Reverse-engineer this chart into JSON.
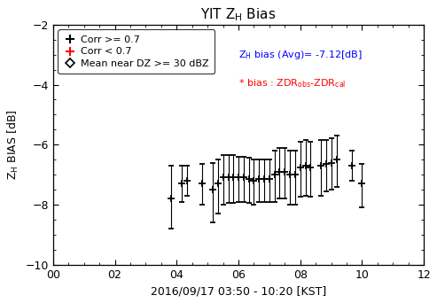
{
  "title": "YIT Z$_\\mathrm{H}$ Bias",
  "xlabel": "2016/09/17 03:50 - 10:20 [KST]",
  "ylabel": "Z$_\\mathrm{H}$ BIAS [dB]",
  "xlim": [
    0,
    12
  ],
  "ylim": [
    -10,
    -2
  ],
  "xticks": [
    0,
    2,
    4,
    6,
    8,
    10,
    12
  ],
  "xticklabels": [
    "00",
    "02",
    "04",
    "06",
    "08",
    "10",
    "12"
  ],
  "yticks": [
    -10,
    -8,
    -6,
    -4,
    -2
  ],
  "x_data": [
    3.83,
    4.17,
    4.33,
    4.83,
    5.17,
    5.33,
    5.5,
    5.67,
    5.83,
    6.0,
    6.17,
    6.33,
    6.5,
    6.67,
    6.83,
    7.0,
    7.17,
    7.33,
    7.5,
    7.67,
    7.83,
    8.0,
    8.17,
    8.33,
    8.67,
    8.83,
    9.0,
    9.17,
    9.67,
    10.0
  ],
  "y_data": [
    -7.8,
    -7.3,
    -7.2,
    -7.3,
    -7.5,
    -7.3,
    -7.1,
    -7.1,
    -7.1,
    -7.1,
    -7.1,
    -7.15,
    -7.2,
    -7.15,
    -7.15,
    -7.15,
    -7.0,
    -6.9,
    -6.9,
    -7.0,
    -7.0,
    -6.75,
    -6.7,
    -6.75,
    -6.7,
    -6.65,
    -6.6,
    -6.5,
    -6.7,
    -7.3
  ],
  "yerr_low": [
    1.0,
    0.6,
    0.5,
    0.7,
    1.1,
    1.0,
    0.9,
    0.85,
    0.85,
    0.8,
    0.8,
    0.8,
    0.8,
    0.75,
    0.75,
    0.75,
    0.9,
    0.9,
    0.9,
    1.0,
    1.0,
    1.0,
    1.0,
    1.0,
    1.0,
    0.9,
    0.9,
    0.9,
    0.5,
    0.8
  ],
  "yerr_high": [
    1.1,
    0.6,
    0.5,
    0.65,
    0.9,
    0.8,
    0.75,
    0.75,
    0.75,
    0.7,
    0.7,
    0.7,
    0.7,
    0.65,
    0.65,
    0.65,
    0.8,
    0.8,
    0.8,
    0.8,
    0.8,
    0.85,
    0.85,
    0.85,
    0.85,
    0.8,
    0.8,
    0.8,
    0.5,
    0.65
  ],
  "avg_bias_text_blue": "Z",
  "avg_bias_value": " bias (Avg)= -7.12[dB]",
  "bias_formula": "* bias : ZDR",
  "legend_corr_high": "Corr >= 0.7",
  "legend_corr_low": "Corr < 0.7",
  "legend_mean": "Mean near DZ >= 30 dBZ",
  "marker_color": "black",
  "ecolor": "#000000",
  "avg_text_color": "blue",
  "bias_text_color": "red",
  "fontsize_tick": 9,
  "fontsize_label": 9,
  "fontsize_title": 11,
  "fontsize_annot": 8,
  "fontsize_legend": 8
}
